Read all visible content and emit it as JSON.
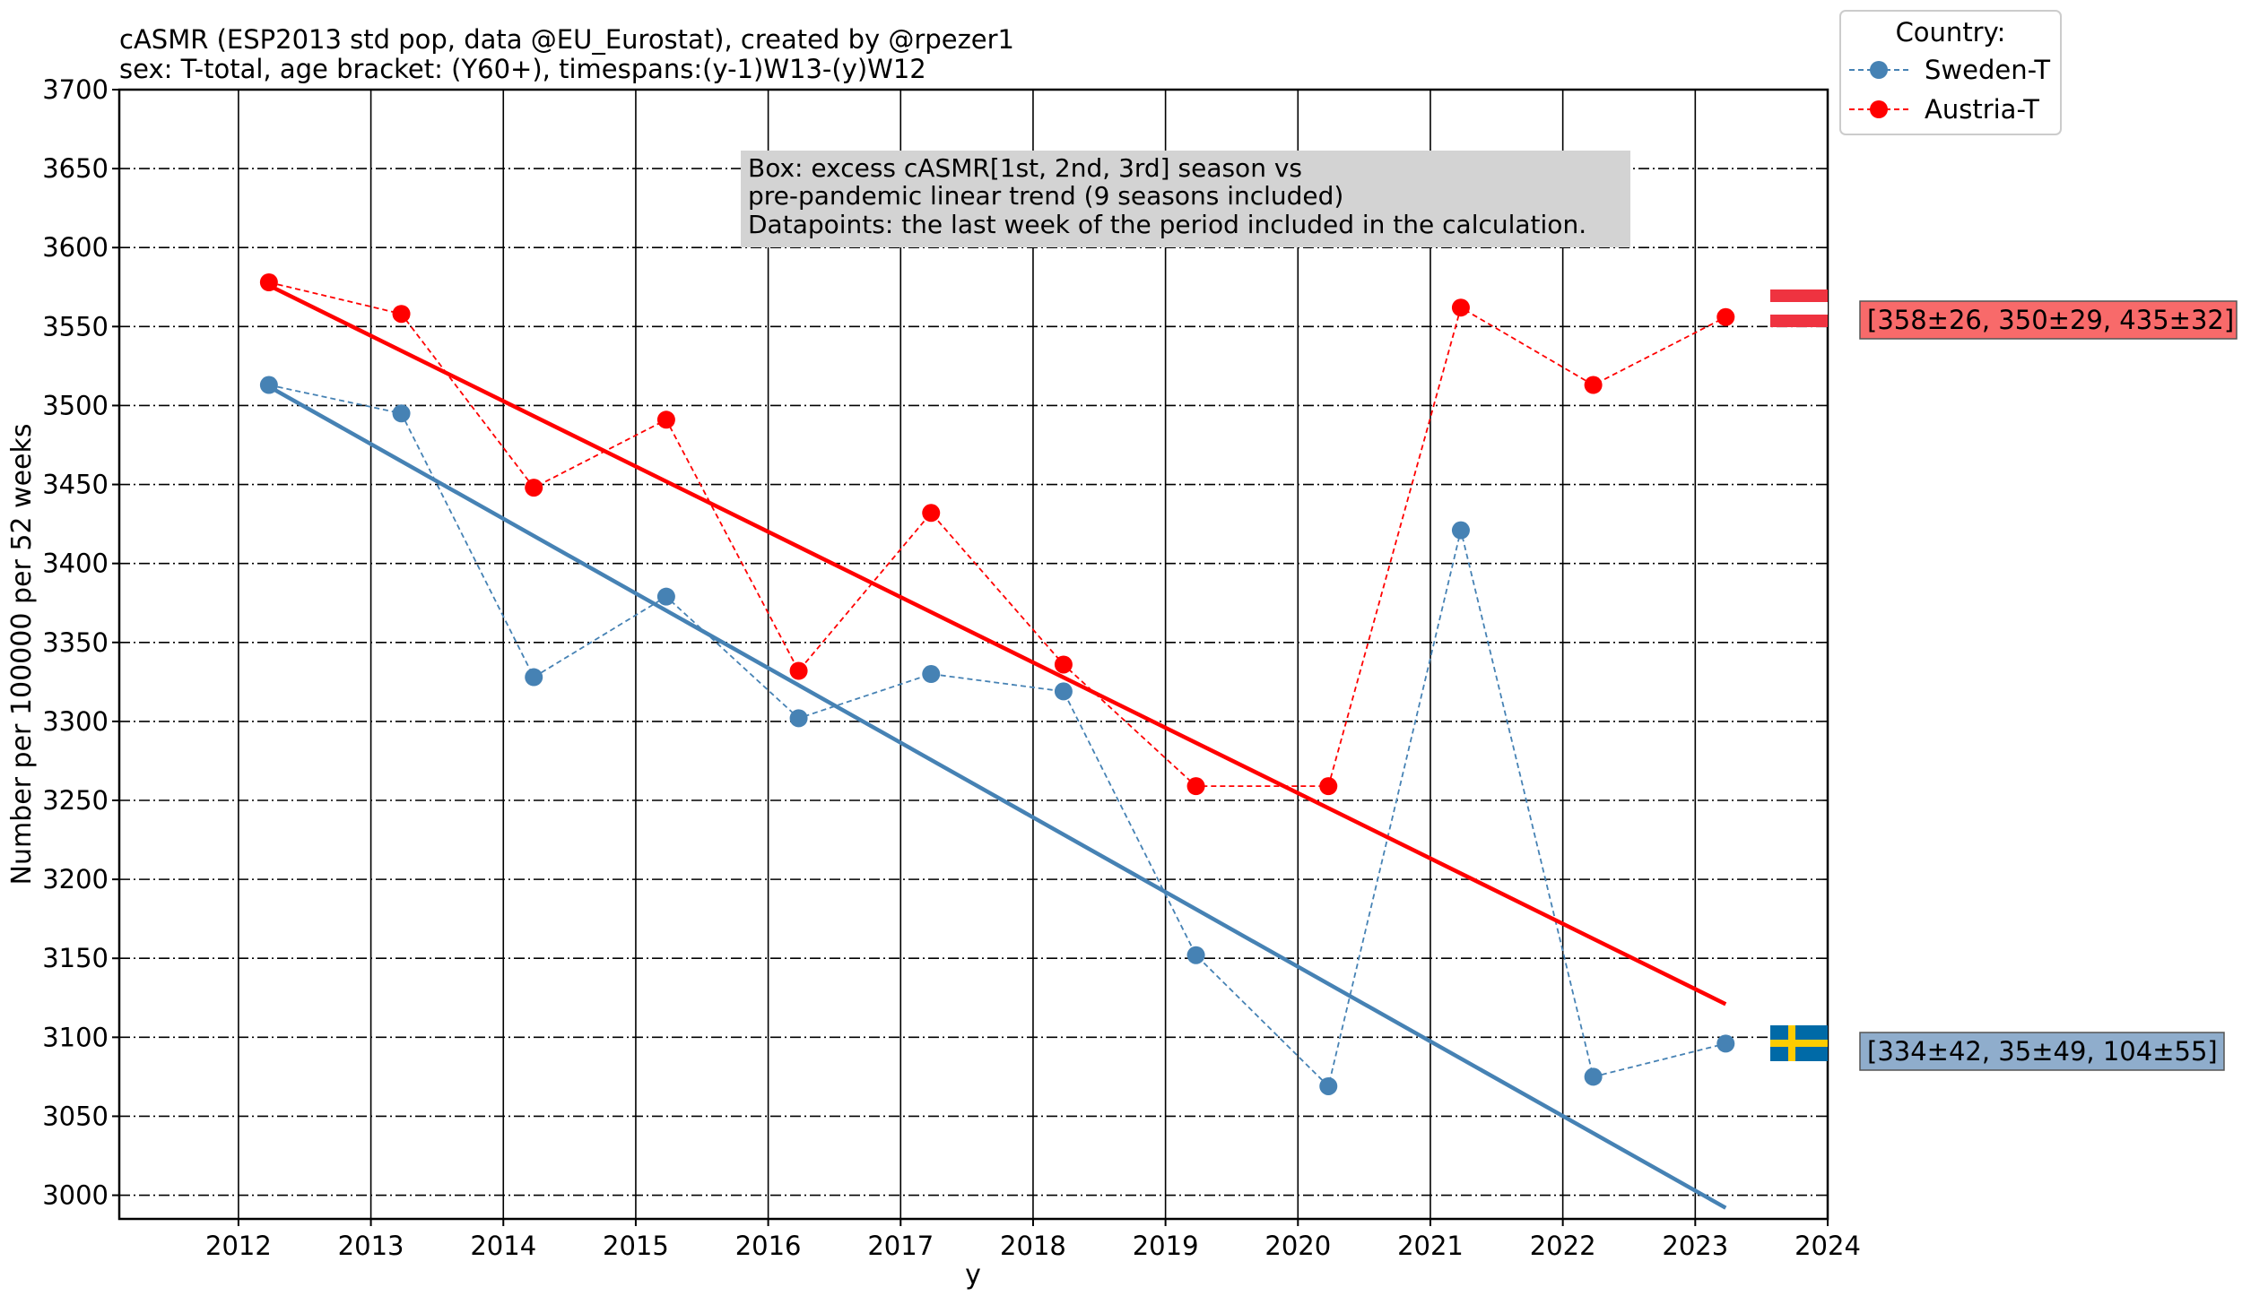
{
  "chart_data": {
    "type": "line",
    "title_line1": "cASMR (ESP2013 std pop, data @EU_Eurostat), created by @rpezer1",
    "title_line2": "sex: T-total, age bracket: (Y60+), timespans:(y-1)W13-(y)W12",
    "xlabel": "y",
    "ylabel": "Number per 100000 per 52 weeks",
    "xlim": [
      2011.1,
      2024
    ],
    "ylim": [
      2985,
      3700
    ],
    "xticks": [
      2012,
      2013,
      2014,
      2015,
      2016,
      2017,
      2018,
      2019,
      2020,
      2021,
      2022,
      2023,
      2024
    ],
    "yticks": [
      3000,
      3050,
      3100,
      3150,
      3200,
      3250,
      3300,
      3350,
      3400,
      3450,
      3500,
      3550,
      3600,
      3650,
      3700
    ],
    "annotation": [
      "Box: excess cASMR[1st, 2nd, 3rd] season vs",
      "pre-pandemic linear trend (9 seasons included)",
      "Datapoints: the last week of the period included in the calculation."
    ],
    "legend": {
      "title": "Country:",
      "location": "top-right outside"
    },
    "series": [
      {
        "name": "Sweden-T",
        "color": "#4682b4",
        "x": [
          2012.23,
          2013.23,
          2014.23,
          2015.23,
          2016.23,
          2017.23,
          2018.23,
          2019.23,
          2020.23,
          2021.23,
          2022.23,
          2023.23
        ],
        "values": [
          3513,
          3495,
          3328,
          3379,
          3302,
          3330,
          3319,
          3152,
          3069,
          3421,
          3075,
          3096
        ],
        "trend": {
          "x": [
            2012.23,
            2023.23
          ],
          "y": [
            3512,
            2992
          ]
        },
        "excess_label": "[334±42, 35±49, 104±55]",
        "box_color": "#8fadcc",
        "flag": "sweden-flag"
      },
      {
        "name": "Austria-T",
        "color": "#ff0000",
        "x": [
          2012.23,
          2013.23,
          2014.23,
          2015.23,
          2016.23,
          2017.23,
          2018.23,
          2019.23,
          2020.23,
          2021.23,
          2022.23,
          2023.23
        ],
        "values": [
          3578,
          3558,
          3448,
          3491,
          3332,
          3432,
          3336,
          3259,
          3259,
          3562,
          3513,
          3556
        ],
        "trend": {
          "x": [
            2012.23,
            2023.23
          ],
          "y": [
            3576,
            3121
          ]
        },
        "excess_label": "[358±26, 350±29, 435±32]",
        "box_color": "#f86a6a",
        "flag": "austria-flag"
      }
    ]
  }
}
